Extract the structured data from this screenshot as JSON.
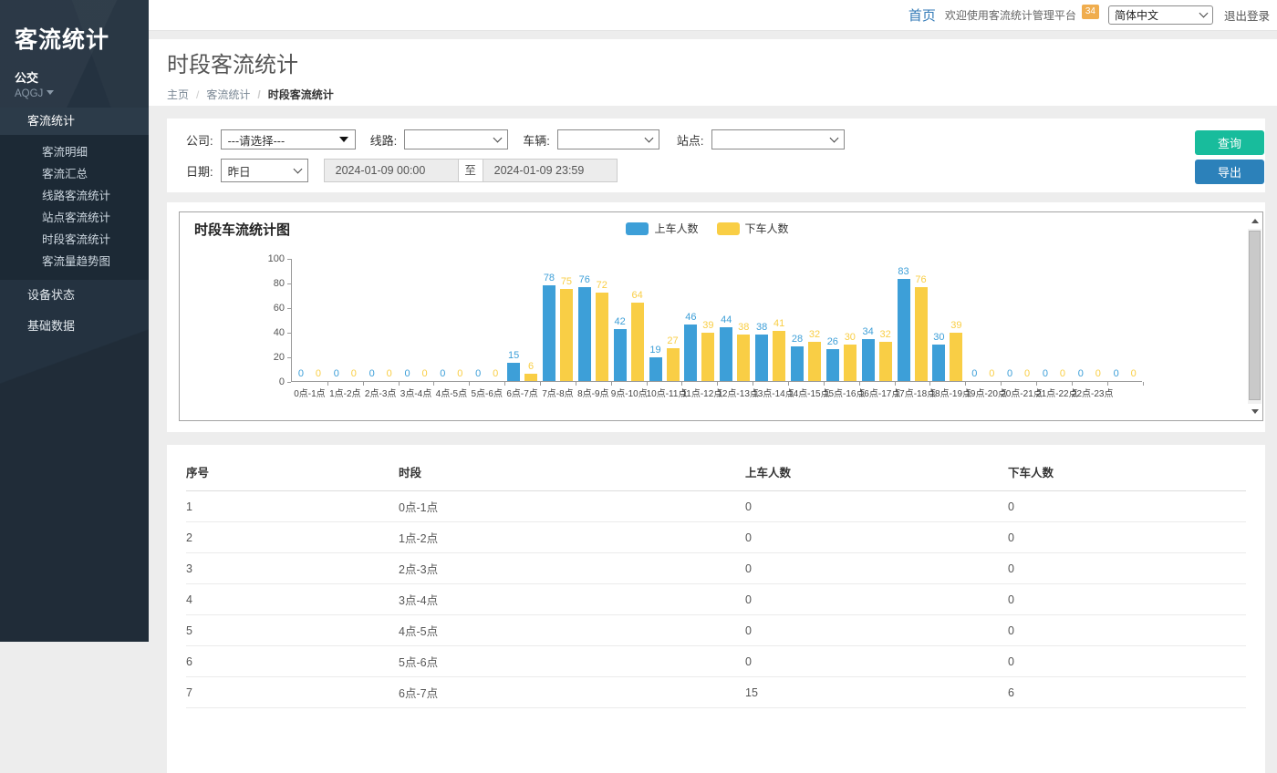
{
  "sidebar": {
    "logo": "客流统计",
    "org": "公交",
    "org_code": "AQGJ",
    "menu_section": "客流统计",
    "submenu": [
      "客流明细",
      "客流汇总",
      "线路客流统计",
      "站点客流统计",
      "时段客流统计",
      "客流量趋势图"
    ],
    "items": [
      "设备状态",
      "基础数据"
    ]
  },
  "topbar": {
    "home": "首页",
    "welcome": "欢迎使用客流统计管理平台",
    "badge": "34",
    "language": "简体中文",
    "logout": "退出登录"
  },
  "page": {
    "title": "时段客流统计",
    "breadcrumb": [
      "主页",
      "客流统计",
      "时段客流统计"
    ]
  },
  "filters": {
    "company_label": "公司:",
    "company_value": "---请选择---",
    "line_label": "线路:",
    "line_value": "",
    "vehicle_label": "车辆:",
    "vehicle_value": "",
    "station_label": "站点:",
    "station_value": "",
    "date_label": "日期:",
    "date_preset": "昨日",
    "date_start": "2024-01-09 00:00",
    "date_to": "至",
    "date_end": "2024-01-09 23:59",
    "search_button": "查询",
    "export_button": "导出"
  },
  "chart_data": {
    "type": "bar",
    "title": "时段车流统计图",
    "legend_position": "top",
    "grid": false,
    "ylim": [
      0,
      100
    ],
    "yticks": [
      0,
      20,
      40,
      60,
      80,
      100
    ],
    "categories": [
      "0点-1点",
      "1点-2点",
      "2点-3点",
      "3点-4点",
      "4点-5点",
      "5点-6点",
      "6点-7点",
      "7点-8点",
      "8点-9点",
      "9点-10点",
      "10点-11点",
      "11点-12点",
      "12点-13点",
      "13点-14点",
      "14点-15点",
      "15点-16点",
      "16点-17点",
      "17点-18点",
      "18点-19点",
      "19点-20点",
      "20点-21点",
      "21点-22点",
      "22点-23点",
      "23点-24点"
    ],
    "series": [
      {
        "name": "上车人数",
        "color": "#3d9fd8",
        "values": [
          0,
          0,
          0,
          0,
          0,
          0,
          15,
          78,
          76,
          42,
          19,
          46,
          44,
          38,
          28,
          26,
          34,
          83,
          30,
          0,
          0,
          0,
          0,
          0
        ]
      },
      {
        "name": "下车人数",
        "color": "#f9ce45",
        "values": [
          0,
          0,
          0,
          0,
          0,
          0,
          6,
          75,
          72,
          64,
          27,
          39,
          38,
          41,
          32,
          30,
          32,
          76,
          39,
          0,
          0,
          0,
          0,
          0
        ]
      }
    ]
  },
  "table": {
    "headers": [
      "序号",
      "时段",
      "上车人数",
      "下车人数"
    ],
    "rows": [
      [
        "1",
        "0点-1点",
        "0",
        "0"
      ],
      [
        "2",
        "1点-2点",
        "0",
        "0"
      ],
      [
        "3",
        "2点-3点",
        "0",
        "0"
      ],
      [
        "4",
        "3点-4点",
        "0",
        "0"
      ],
      [
        "5",
        "4点-5点",
        "0",
        "0"
      ],
      [
        "6",
        "5点-6点",
        "0",
        "0"
      ],
      [
        "7",
        "6点-7点",
        "15",
        "6"
      ]
    ]
  }
}
